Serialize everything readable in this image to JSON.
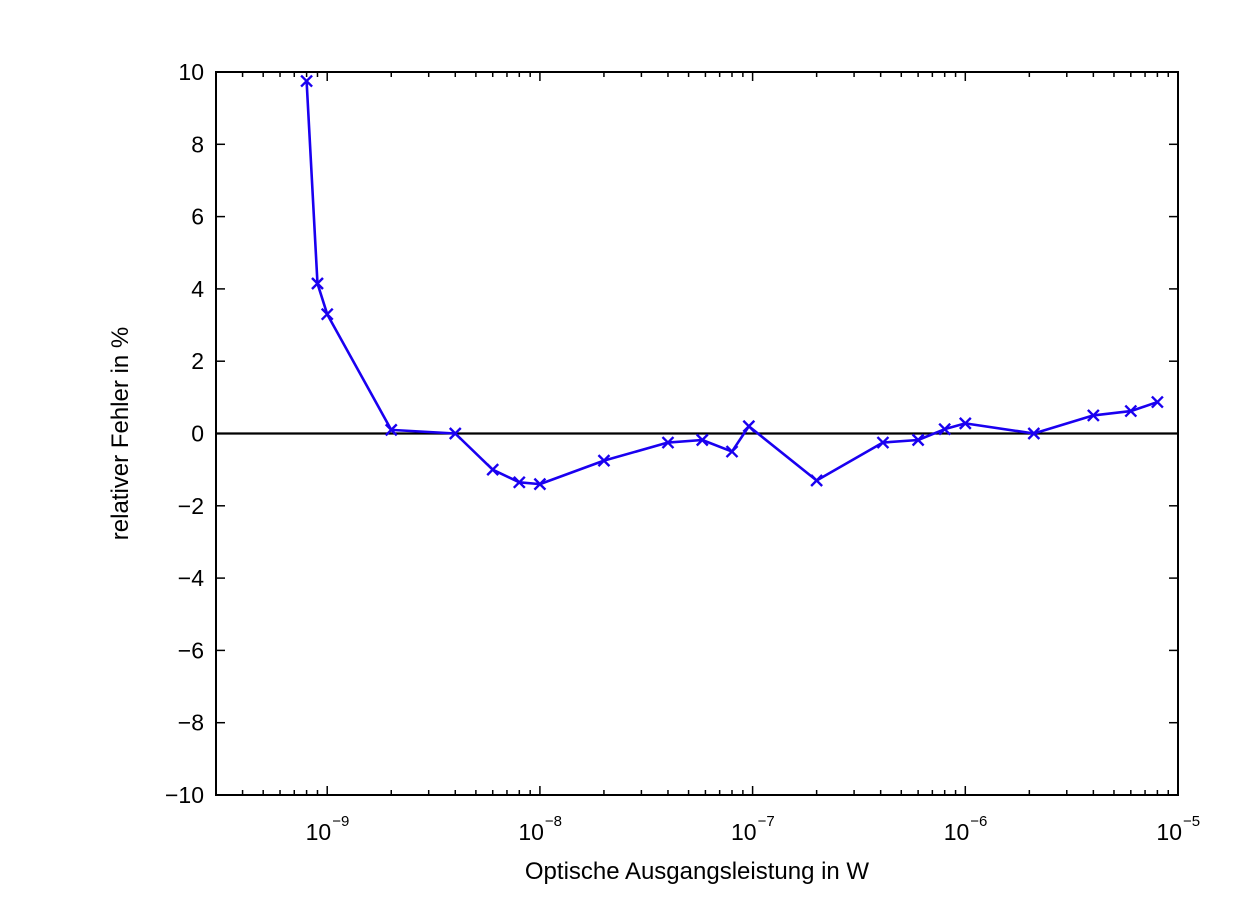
{
  "chart_data": {
    "type": "line",
    "title": "",
    "xlabel": "Optische Ausgangsleistung in W",
    "ylabel": "relativer Fehler in %",
    "x_scale": "log",
    "xlim": [
      3e-10,
      1e-05
    ],
    "ylim": [
      -10,
      10
    ],
    "x_ticks": [
      {
        "value": 1e-09,
        "base": "10",
        "exp": "−9"
      },
      {
        "value": 1e-08,
        "base": "10",
        "exp": "−8"
      },
      {
        "value": 1e-07,
        "base": "10",
        "exp": "−7"
      },
      {
        "value": 1e-06,
        "base": "10",
        "exp": "−6"
      },
      {
        "value": 1e-05,
        "base": "10",
        "exp": "−5"
      }
    ],
    "y_ticks": [
      {
        "value": 10,
        "label": "10"
      },
      {
        "value": 8,
        "label": "8"
      },
      {
        "value": 6,
        "label": "6"
      },
      {
        "value": 4,
        "label": "4"
      },
      {
        "value": 2,
        "label": "2"
      },
      {
        "value": 0,
        "label": "0"
      },
      {
        "value": -2,
        "label": "−2"
      },
      {
        "value": -4,
        "label": "−4"
      },
      {
        "value": -6,
        "label": "−6"
      },
      {
        "value": -8,
        "label": "−8"
      },
      {
        "value": -10,
        "label": "−10"
      }
    ],
    "grid": false,
    "reference_line": {
      "y": 0,
      "color": "#000000"
    },
    "series": [
      {
        "color": "#1a00f0",
        "marker": "x",
        "x": [
          8e-10,
          9e-10,
          1e-09,
          2e-09,
          4e-09,
          6e-09,
          8e-09,
          1e-08,
          2e-08,
          4e-08,
          5.8e-08,
          8e-08,
          9.6e-08,
          2e-07,
          4.1e-07,
          6e-07,
          8e-07,
          1e-06,
          2.1e-06,
          4e-06,
          6e-06,
          8e-06
        ],
        "y": [
          9.75,
          4.15,
          3.3,
          0.1,
          0.0,
          -1.0,
          -1.35,
          -1.4,
          -0.75,
          -0.25,
          -0.18,
          -0.5,
          0.2,
          -1.3,
          -0.25,
          -0.18,
          0.12,
          0.28,
          0.0,
          0.5,
          0.62,
          0.87
        ]
      }
    ]
  }
}
